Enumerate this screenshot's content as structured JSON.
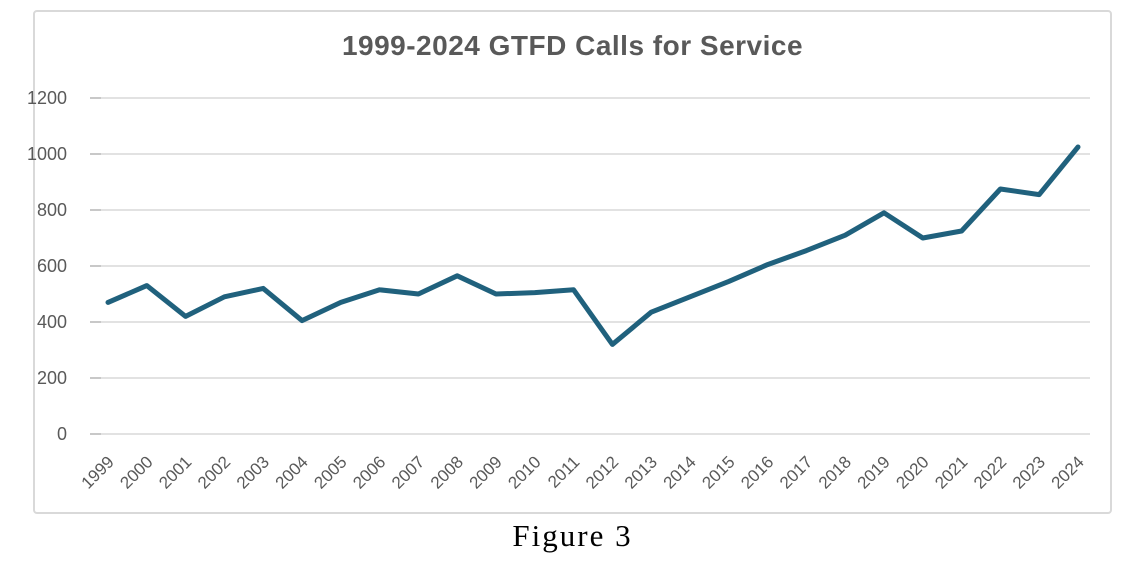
{
  "figure": {
    "caption": "Figure 3"
  },
  "chart_data": {
    "type": "line",
    "title": "1999-2024 GTFD Calls for Service",
    "xlabel": "",
    "ylabel": "",
    "categories": [
      "1999",
      "2000",
      "2001",
      "2002",
      "2003",
      "2004",
      "2005",
      "2006",
      "2007",
      "2008",
      "2009",
      "2010",
      "2011",
      "2012",
      "2013",
      "2014",
      "2015",
      "2016",
      "2017",
      "2018",
      "2019",
      "2020",
      "2021",
      "2022",
      "2023",
      "2024"
    ],
    "values": [
      470,
      530,
      420,
      490,
      520,
      405,
      470,
      515,
      500,
      565,
      500,
      505,
      515,
      320,
      435,
      490,
      545,
      605,
      655,
      710,
      790,
      700,
      725,
      875,
      855,
      1025
    ],
    "ylim": [
      0,
      1200
    ],
    "ytick_interval": 200,
    "ytick_labels": [
      "0",
      "200",
      "400",
      "600",
      "800",
      "1000",
      "1200"
    ],
    "grid": true,
    "legend": false,
    "colors": {
      "line": "#20617D",
      "grid": "#D9D9D9",
      "tick": "#BFBFBF",
      "labels": "#595959",
      "title": "#595959",
      "frame_border": "#D9D9D9",
      "caption": "#000000"
    }
  }
}
